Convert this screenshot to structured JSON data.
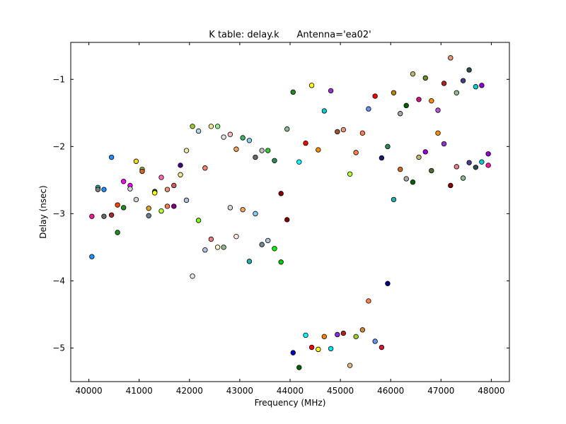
{
  "chart_data": {
    "type": "scatter",
    "title": "K table: delay.k      Antenna='ea02'",
    "xlabel": "Frequency (MHz)",
    "ylabel": "Delay (nsec)",
    "xlim": [
      39640,
      48360
    ],
    "ylim": [
      -5.5,
      -0.45
    ],
    "xticks": [
      40000,
      41000,
      42000,
      43000,
      44000,
      45000,
      46000,
      47000,
      48000
    ],
    "yticks": [
      -1,
      -2,
      -3,
      -4,
      -5
    ],
    "xtick_labels": [
      "40000",
      "41000",
      "42000",
      "43000",
      "44000",
      "45000",
      "46000",
      "47000",
      "48000"
    ],
    "ytick_labels": [
      "−1",
      "−2",
      "−3",
      "−4",
      "−5"
    ],
    "grid": false,
    "legend": "none",
    "points": [
      {
        "x": 40060,
        "y": -3.04,
        "color": "#ff1493"
      },
      {
        "x": 40060,
        "y": -3.64,
        "color": "#1e90ff"
      },
      {
        "x": 40180,
        "y": -2.61,
        "color": "#20b2aa"
      },
      {
        "x": 40180,
        "y": -2.64,
        "color": "#7f7f7f"
      },
      {
        "x": 40300,
        "y": -2.64,
        "color": "#1e90ff"
      },
      {
        "x": 40300,
        "y": -3.04,
        "color": "#696969"
      },
      {
        "x": 40450,
        "y": -2.16,
        "color": "#1e90ff"
      },
      {
        "x": 40450,
        "y": -3.02,
        "color": "#a52a2a"
      },
      {
        "x": 40570,
        "y": -2.87,
        "color": "#ff4500"
      },
      {
        "x": 40570,
        "y": -3.28,
        "color": "#228b22"
      },
      {
        "x": 40690,
        "y": -2.52,
        "color": "#ff00ff"
      },
      {
        "x": 40690,
        "y": -2.91,
        "color": "#228b22"
      },
      {
        "x": 40820,
        "y": -2.58,
        "color": "#ff00ff"
      },
      {
        "x": 40820,
        "y": -2.63,
        "color": "#d3d3d3"
      },
      {
        "x": 40940,
        "y": -2.22,
        "color": "#ffd700"
      },
      {
        "x": 40940,
        "y": -2.79,
        "color": "#d3d3d3"
      },
      {
        "x": 41060,
        "y": -2.34,
        "color": "#9acd32"
      },
      {
        "x": 41060,
        "y": -2.37,
        "color": "#d2691e"
      },
      {
        "x": 41190,
        "y": -2.92,
        "color": "#daa520"
      },
      {
        "x": 41190,
        "y": -3.03,
        "color": "#708090"
      },
      {
        "x": 41310,
        "y": -2.67,
        "color": "#006400"
      },
      {
        "x": 41310,
        "y": -2.69,
        "color": "#ffff00"
      },
      {
        "x": 41440,
        "y": -2.46,
        "color": "#ff69b4"
      },
      {
        "x": 41440,
        "y": -2.96,
        "color": "#adff2f"
      },
      {
        "x": 41560,
        "y": -2.64,
        "color": "#e9967a"
      },
      {
        "x": 41560,
        "y": -2.89,
        "color": "#ff7f50"
      },
      {
        "x": 41690,
        "y": -2.58,
        "color": "#cd5c5c"
      },
      {
        "x": 41690,
        "y": -2.89,
        "color": "#800080"
      },
      {
        "x": 41820,
        "y": -2.28,
        "color": "#4b0082"
      },
      {
        "x": 41820,
        "y": -2.42,
        "color": "#f0e68c"
      },
      {
        "x": 41940,
        "y": -2.06,
        "color": "#eee8aa"
      },
      {
        "x": 41940,
        "y": -2.8,
        "color": "#b0c4de"
      },
      {
        "x": 42060,
        "y": -1.7,
        "color": "#9acd32"
      },
      {
        "x": 42060,
        "y": -3.93,
        "color": "#e6e6e6"
      },
      {
        "x": 42180,
        "y": -1.77,
        "color": "#add8e6"
      },
      {
        "x": 42180,
        "y": -3.1,
        "color": "#7cfc00"
      },
      {
        "x": 42310,
        "y": -2.32,
        "color": "#fa8072"
      },
      {
        "x": 42310,
        "y": -3.54,
        "color": "#b0c4de"
      },
      {
        "x": 42430,
        "y": -1.7,
        "color": "#f0e68c"
      },
      {
        "x": 42430,
        "y": -3.38,
        "color": "#f08080"
      },
      {
        "x": 42560,
        "y": -1.7,
        "color": "#90ee90"
      },
      {
        "x": 42560,
        "y": -3.5,
        "color": "#fffacd"
      },
      {
        "x": 42680,
        "y": -1.86,
        "color": "#e0e0e0"
      },
      {
        "x": 42680,
        "y": -3.5,
        "color": "#8fbc8f"
      },
      {
        "x": 42810,
        "y": -1.82,
        "color": "#ffb6c1"
      },
      {
        "x": 42810,
        "y": -2.91,
        "color": "#d8d8d8"
      },
      {
        "x": 42930,
        "y": -2.04,
        "color": "#f4a460"
      },
      {
        "x": 42930,
        "y": -3.34,
        "color": "#ffe4e1"
      },
      {
        "x": 43060,
        "y": -1.87,
        "color": "#3cb371"
      },
      {
        "x": 43060,
        "y": -2.94,
        "color": "#f4a460"
      },
      {
        "x": 43190,
        "y": -1.91,
        "color": "#87ceeb"
      },
      {
        "x": 43190,
        "y": -3.71,
        "color": "#20b2aa"
      },
      {
        "x": 43310,
        "y": -2.16,
        "color": "#696969"
      },
      {
        "x": 43310,
        "y": -3.0,
        "color": "#87cefa"
      },
      {
        "x": 43440,
        "y": -2.06,
        "color": "#c0c0c0"
      },
      {
        "x": 43440,
        "y": -3.46,
        "color": "#778899"
      },
      {
        "x": 43560,
        "y": -2.06,
        "color": "#32cd32"
      },
      {
        "x": 43560,
        "y": -3.4,
        "color": "#b0c4de"
      },
      {
        "x": 43690,
        "y": -2.21,
        "color": "#2e8b57"
      },
      {
        "x": 43690,
        "y": -3.52,
        "color": "#00ff00"
      },
      {
        "x": 43820,
        "y": -2.7,
        "color": "#8b0000"
      },
      {
        "x": 43820,
        "y": -3.72,
        "color": "#00cc00"
      },
      {
        "x": 43940,
        "y": -1.74,
        "color": "#8fbc8f"
      },
      {
        "x": 43940,
        "y": -3.09,
        "color": "#800000"
      },
      {
        "x": 44060,
        "y": -1.19,
        "color": "#228b22"
      },
      {
        "x": 44060,
        "y": -5.07,
        "color": "#0000cd"
      },
      {
        "x": 44180,
        "y": -2.23,
        "color": "#00ffff"
      },
      {
        "x": 44180,
        "y": -5.29,
        "color": "#006400"
      },
      {
        "x": 44310,
        "y": -1.95,
        "color": "#ff0000"
      },
      {
        "x": 44310,
        "y": -4.81,
        "color": "#00ffff"
      },
      {
        "x": 44430,
        "y": -1.09,
        "color": "#ffff00"
      },
      {
        "x": 44430,
        "y": -4.99,
        "color": "#ff0000"
      },
      {
        "x": 44560,
        "y": -2.05,
        "color": "#ff8c00"
      },
      {
        "x": 44560,
        "y": -5.02,
        "color": "#ffff00"
      },
      {
        "x": 44680,
        "y": -1.47,
        "color": "#00ced1"
      },
      {
        "x": 44680,
        "y": -4.83,
        "color": "#ff7f00"
      },
      {
        "x": 44810,
        "y": -1.17,
        "color": "#9932cc"
      },
      {
        "x": 44810,
        "y": -5.01,
        "color": "#00e5ee"
      },
      {
        "x": 44940,
        "y": -1.78,
        "color": "#a0522d"
      },
      {
        "x": 44940,
        "y": -4.8,
        "color": "#8a2be2"
      },
      {
        "x": 45060,
        "y": -1.75,
        "color": "#e9967a"
      },
      {
        "x": 45060,
        "y": -4.78,
        "color": "#b22222"
      },
      {
        "x": 45190,
        "y": -2.41,
        "color": "#adff2f"
      },
      {
        "x": 45190,
        "y": -5.26,
        "color": "#deb887"
      },
      {
        "x": 45310,
        "y": -2.09,
        "color": "#ff7f50"
      },
      {
        "x": 45310,
        "y": -4.83,
        "color": "#9acd32"
      },
      {
        "x": 45440,
        "y": -1.8,
        "color": "#ff7f50"
      },
      {
        "x": 45440,
        "y": -4.73,
        "color": "#cd853f"
      },
      {
        "x": 45560,
        "y": -1.44,
        "color": "#6495ed"
      },
      {
        "x": 45560,
        "y": -4.3,
        "color": "#ff7f50"
      },
      {
        "x": 45690,
        "y": -1.25,
        "color": "#ff0000"
      },
      {
        "x": 45690,
        "y": -4.9,
        "color": "#6495ed"
      },
      {
        "x": 45820,
        "y": -2.17,
        "color": "#191970"
      },
      {
        "x": 45820,
        "y": -4.99,
        "color": "#dc143c"
      },
      {
        "x": 45940,
        "y": -2.0,
        "color": "#2e8b57"
      },
      {
        "x": 45940,
        "y": -4.04,
        "color": "#000080"
      },
      {
        "x": 46060,
        "y": -1.2,
        "color": "#b8860b"
      },
      {
        "x": 46060,
        "y": -2.79,
        "color": "#20b2aa"
      },
      {
        "x": 46190,
        "y": -1.51,
        "color": "#a9a9a9"
      },
      {
        "x": 46190,
        "y": -2.34,
        "color": "#d2691e"
      },
      {
        "x": 46310,
        "y": -1.39,
        "color": "#006400"
      },
      {
        "x": 46310,
        "y": -2.48,
        "color": "#a9a9a9"
      },
      {
        "x": 46440,
        "y": -0.92,
        "color": "#bdb76b"
      },
      {
        "x": 46440,
        "y": -2.53,
        "color": "#006400"
      },
      {
        "x": 46560,
        "y": -1.3,
        "color": "#c71585"
      },
      {
        "x": 46560,
        "y": -2.16,
        "color": "#bdb76b"
      },
      {
        "x": 46690,
        "y": -0.98,
        "color": "#6b8e23"
      },
      {
        "x": 46690,
        "y": -2.08,
        "color": "#9400d3"
      },
      {
        "x": 46810,
        "y": -1.32,
        "color": "#ff8c00"
      },
      {
        "x": 46810,
        "y": -2.36,
        "color": "#556b2f"
      },
      {
        "x": 46940,
        "y": -1.46,
        "color": "#ba55d3"
      },
      {
        "x": 46940,
        "y": -1.8,
        "color": "#ff8c00"
      },
      {
        "x": 47060,
        "y": -1.06,
        "color": "#b22222"
      },
      {
        "x": 47060,
        "y": -1.96,
        "color": "#9932cc"
      },
      {
        "x": 47190,
        "y": -0.68,
        "color": "#e9967a"
      },
      {
        "x": 47190,
        "y": -2.58,
        "color": "#8b0000"
      },
      {
        "x": 47310,
        "y": -1.2,
        "color": "#8fbc8f"
      },
      {
        "x": 47310,
        "y": -2.3,
        "color": "#f08080"
      },
      {
        "x": 47440,
        "y": -1.02,
        "color": "#483d8b"
      },
      {
        "x": 47440,
        "y": -2.47,
        "color": "#8fbc8f"
      },
      {
        "x": 47560,
        "y": -0.86,
        "color": "#2f4f4f"
      },
      {
        "x": 47560,
        "y": -2.24,
        "color": "#483d8b"
      },
      {
        "x": 47690,
        "y": -1.11,
        "color": "#00ced1"
      },
      {
        "x": 47690,
        "y": -2.31,
        "color": "#2f4f4f"
      },
      {
        "x": 47810,
        "y": -1.09,
        "color": "#9400d3"
      },
      {
        "x": 47810,
        "y": -2.23,
        "color": "#00ced1"
      },
      {
        "x": 47940,
        "y": -2.11,
        "color": "#9400d3"
      },
      {
        "x": 47940,
        "y": -2.28,
        "color": "#ff1493"
      }
    ]
  }
}
